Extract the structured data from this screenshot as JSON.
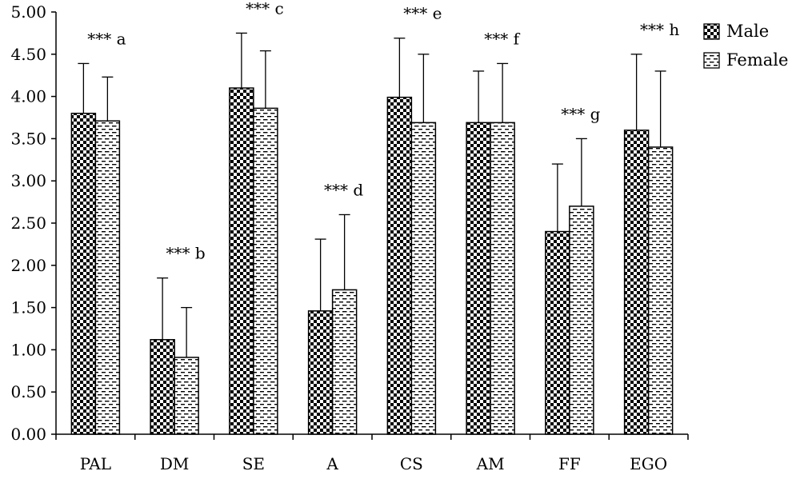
{
  "chart_data": {
    "type": "bar",
    "categories": [
      "PAL",
      "DM",
      "SE",
      "A",
      "CS",
      "AM",
      "FF",
      "EGO"
    ],
    "series": [
      {
        "name": "Male",
        "values": [
          3.8,
          1.12,
          4.1,
          1.46,
          3.99,
          3.69,
          2.4,
          3.6
        ],
        "errors": [
          0.59,
          0.73,
          0.65,
          0.85,
          0.7,
          0.61,
          0.8,
          0.9
        ]
      },
      {
        "name": "Female",
        "values": [
          3.71,
          0.91,
          3.86,
          1.71,
          3.69,
          3.69,
          2.7,
          3.4
        ],
        "errors": [
          0.52,
          0.59,
          0.68,
          0.89,
          0.81,
          0.7,
          0.8,
          0.9
        ]
      }
    ],
    "annotations": [
      "*** a",
      "*** b",
      "*** c",
      "*** d",
      "*** e",
      "*** f",
      "*** g",
      "*** h"
    ],
    "ylim": [
      0,
      5
    ],
    "yticks": [
      "0.00",
      "0.50",
      "1.00",
      "1.50",
      "2.00",
      "2.50",
      "3.00",
      "3.50",
      "4.00",
      "4.50",
      "5.00"
    ],
    "title": "",
    "xlabel": "",
    "ylabel": "",
    "legend_position": "top-right",
    "grid": false,
    "colors": {
      "axis": "#000000",
      "bar_stroke": "#000000",
      "male_fill": "#000000",
      "female_fill": "#000000"
    }
  }
}
